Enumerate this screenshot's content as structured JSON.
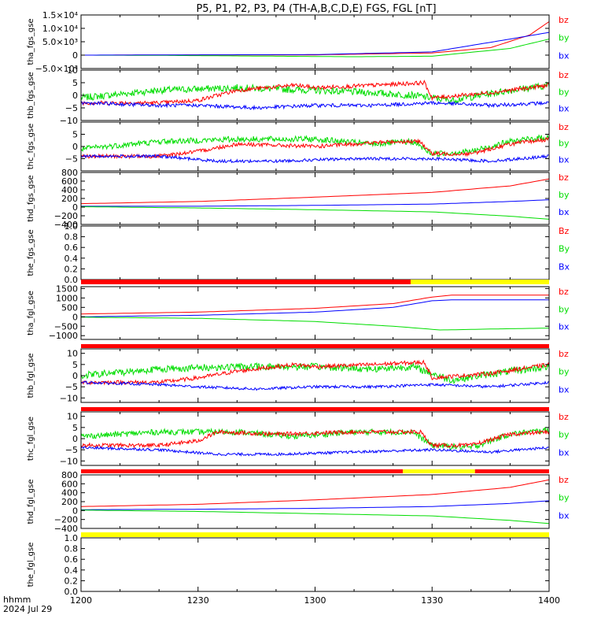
{
  "title": "P5, P1, P2, P3, P4 (TH-A,B,C,D,E) FGS, FGL [nT]",
  "footer": {
    "line1": "hhmm",
    "line2": "2024 Jul 29"
  },
  "colors": {
    "bx": "#0000ff",
    "by": "#00dd00",
    "bz": "#ff0000",
    "bar_red": "#ff0000",
    "bar_yellow": "#ffff00",
    "frame": "#000000",
    "text": "#000000"
  },
  "chart_data": {
    "type": "line",
    "x_ticks": [
      "1200",
      "1230",
      "1300",
      "1330",
      "1400"
    ],
    "x_tick_values": [
      0,
      30,
      60,
      90,
      120
    ],
    "x_unit": "minutes after 12:00",
    "panels": [
      {
        "ylabel": "tha_fgs_gse",
        "ylim": [
          -5000,
          15000
        ],
        "yticks": [
          {
            "v": 15000,
            "label": "1.5×10⁴"
          },
          {
            "v": 10000,
            "label": "1.0×10⁴"
          },
          {
            "v": 5000,
            "label": "5.0×10³"
          },
          {
            "v": 0,
            "label": "0"
          },
          {
            "v": -5000,
            "label": "−5.0×10³"
          }
        ],
        "legend": [
          "bz",
          "by",
          "bx"
        ],
        "series": [
          {
            "name": "bz",
            "kind": "smooth",
            "x": [
              0,
              60,
              90,
              105,
              115,
              120
            ],
            "y": [
              0,
              100,
              800,
              2800,
              7500,
              12500
            ]
          },
          {
            "name": "by",
            "kind": "smooth",
            "x": [
              0,
              20,
              40,
              70,
              90,
              110,
              120
            ],
            "y": [
              0,
              -80,
              -300,
              -600,
              -400,
              2500,
              6000
            ]
          },
          {
            "name": "bx",
            "kind": "smooth",
            "x": [
              0,
              60,
              90,
              110,
              120
            ],
            "y": [
              0,
              200,
              1200,
              6000,
              8500
            ]
          }
        ]
      },
      {
        "ylabel": "thb_fgs_gse",
        "ylim": [
          -10,
          10
        ],
        "yticks": [
          {
            "v": 10,
            "label": "10"
          },
          {
            "v": 5,
            "label": "5"
          },
          {
            "v": 0,
            "label": "0"
          },
          {
            "v": -5,
            "label": "−5"
          },
          {
            "v": -10,
            "label": "−10"
          }
        ],
        "legend": [
          "bz",
          "by",
          "bx"
        ],
        "series": [
          {
            "name": "by",
            "kind": "noisy",
            "noise": 1.4,
            "x": [
              0,
              20,
              40,
              60,
              75,
              85,
              95,
              110,
              120
            ],
            "y": [
              -1,
              2,
              3,
              2,
              1,
              0,
              -2,
              2,
              4
            ]
          },
          {
            "name": "bz",
            "kind": "noisy",
            "noise": 0.8,
            "x": [
              0,
              20,
              30,
              40,
              55,
              60,
              75,
              88,
              90,
              105,
              120
            ],
            "y": [
              -3,
              -3,
              -2,
              2,
              4,
              3,
              4,
              5,
              -1,
              1,
              4
            ]
          },
          {
            "name": "bx",
            "kind": "noisy",
            "noise": 0.7,
            "x": [
              0,
              20,
              30,
              45,
              60,
              75,
              90,
              105,
              120
            ],
            "y": [
              -3,
              -4,
              -4,
              -5,
              -4,
              -4,
              -3,
              -4,
              -3
            ]
          }
        ]
      },
      {
        "ylabel": "thc_fgs_gse",
        "ylim": [
          -10,
          10
        ],
        "yticks": [
          {
            "v": 5,
            "label": "5"
          },
          {
            "v": 0,
            "label": "0"
          },
          {
            "v": -5,
            "label": "−5"
          }
        ],
        "legend": [
          "bz",
          "by",
          "bx"
        ],
        "series": [
          {
            "name": "by",
            "kind": "noisy",
            "noise": 1.2,
            "x": [
              0,
              20,
              40,
              60,
              75,
              85,
              90,
              100,
              110,
              120
            ],
            "y": [
              -1,
              2,
              3,
              3,
              1,
              2,
              -3,
              -2,
              2,
              4
            ]
          },
          {
            "name": "bz",
            "kind": "noisy",
            "noise": 0.8,
            "x": [
              0,
              20,
              30,
              40,
              60,
              80,
              87,
              90,
              100,
              110,
              120
            ],
            "y": [
              -4,
              -4,
              -2,
              1,
              0,
              2,
              2,
              -3,
              -3,
              1,
              3
            ]
          },
          {
            "name": "bx",
            "kind": "noisy",
            "noise": 0.6,
            "x": [
              0,
              20,
              35,
              50,
              70,
              90,
              105,
              120
            ],
            "y": [
              -4,
              -4,
              -6,
              -6,
              -5,
              -5,
              -6,
              -4
            ]
          }
        ]
      },
      {
        "ylabel": "thd_fgs_gse",
        "ylim": [
          -400,
          800
        ],
        "yticks": [
          {
            "v": 800,
            "label": "800"
          },
          {
            "v": 600,
            "label": "600"
          },
          {
            "v": 400,
            "label": "400"
          },
          {
            "v": 200,
            "label": "200"
          },
          {
            "v": 0,
            "label": "0"
          },
          {
            "v": -200,
            "label": "−200"
          },
          {
            "v": -400,
            "label": "−400"
          }
        ],
        "legend": [
          "bz",
          "by",
          "bx"
        ],
        "series": [
          {
            "name": "bz",
            "kind": "smooth",
            "x": [
              0,
              30,
              60,
              90,
              110,
              120
            ],
            "y": [
              80,
              130,
              230,
              340,
              490,
              650
            ]
          },
          {
            "name": "bx",
            "kind": "smooth",
            "x": [
              0,
              30,
              60,
              90,
              110,
              120
            ],
            "y": [
              20,
              20,
              40,
              70,
              130,
              170
            ]
          },
          {
            "name": "by",
            "kind": "smooth",
            "x": [
              0,
              30,
              60,
              90,
              110,
              120
            ],
            "y": [
              10,
              -20,
              -60,
              -110,
              -210,
              -280
            ]
          }
        ]
      },
      {
        "ylabel": "the_fgs_gse",
        "ylim": [
          0,
          1.0
        ],
        "yticks": [
          {
            "v": 1.0,
            "label": "1.0"
          },
          {
            "v": 0.8,
            "label": "0.8"
          },
          {
            "v": 0.6,
            "label": "0.6"
          },
          {
            "v": 0.4,
            "label": "0.4"
          },
          {
            "v": 0.2,
            "label": "0.2"
          },
          {
            "v": 0.0,
            "label": "0.0"
          }
        ],
        "legend": [
          "Bz",
          "By",
          "Bx"
        ],
        "series": []
      },
      {
        "ylabel": "tha_fgl_gse",
        "ylim": [
          -1200,
          1600
        ],
        "yticks": [
          {
            "v": 1500,
            "label": "1500"
          },
          {
            "v": 1000,
            "label": "1000"
          },
          {
            "v": 500,
            "label": "500"
          },
          {
            "v": 0,
            "label": "0"
          },
          {
            "v": -500,
            "label": "−500"
          },
          {
            "v": -1000,
            "label": "−1000"
          }
        ],
        "legend": [
          "bz",
          "by",
          "bx"
        ],
        "series": [
          {
            "name": "bz",
            "kind": "smooth",
            "x": [
              0,
              30,
              60,
              80,
              90,
              95,
              120
            ],
            "y": [
              150,
              250,
              450,
              700,
              1050,
              1150,
              1150
            ]
          },
          {
            "name": "bx",
            "kind": "smooth",
            "x": [
              0,
              30,
              60,
              80,
              90,
              95,
              120
            ],
            "y": [
              0,
              80,
              250,
              500,
              850,
              900,
              900
            ]
          },
          {
            "name": "by",
            "kind": "smooth",
            "x": [
              0,
              30,
              60,
              80,
              92,
              105,
              120
            ],
            "y": [
              -20,
              -80,
              -250,
              -500,
              -700,
              -650,
              -600
            ]
          }
        ]
      },
      {
        "ylabel": "thb_fgl_gse",
        "ylim": [
          -12,
          12
        ],
        "yticks": [
          {
            "v": 10,
            "label": "10"
          },
          {
            "v": 5,
            "label": "5"
          },
          {
            "v": 0,
            "label": "0"
          },
          {
            "v": -5,
            "label": "−5"
          },
          {
            "v": -10,
            "label": "−10"
          }
        ],
        "legend": [
          "bz",
          "by",
          "bx"
        ],
        "series": [
          {
            "name": "by",
            "kind": "noisy",
            "noise": 1.6,
            "x": [
              0,
              20,
              40,
              60,
              75,
              85,
              95,
              110,
              120
            ],
            "y": [
              0,
              3,
              4,
              4,
              3,
              4,
              -2,
              2,
              4
            ]
          },
          {
            "name": "bz",
            "kind": "noisy",
            "noise": 0.9,
            "x": [
              0,
              20,
              30,
              40,
              55,
              60,
              75,
              88,
              90,
              105,
              120
            ],
            "y": [
              -3,
              -3,
              -1,
              2,
              5,
              4,
              5,
              6,
              -1,
              1,
              5
            ]
          },
          {
            "name": "bx",
            "kind": "noisy",
            "noise": 0.6,
            "x": [
              0,
              20,
              30,
              45,
              60,
              75,
              90,
              105,
              120
            ],
            "y": [
              -3,
              -4,
              -5,
              -6,
              -5,
              -5,
              -4,
              -5,
              -3
            ]
          }
        ]
      },
      {
        "ylabel": "thc_fgl_gse",
        "ylim": [
          -12,
          12
        ],
        "yticks": [
          {
            "v": 10,
            "label": "10"
          },
          {
            "v": 5,
            "label": "5"
          },
          {
            "v": 0,
            "label": "0"
          },
          {
            "v": -5,
            "label": "−5"
          },
          {
            "v": -10,
            "label": "−10"
          }
        ],
        "legend": [
          "bz",
          "by",
          "bx"
        ],
        "series": [
          {
            "name": "by",
            "kind": "noisy",
            "noise": 1.3,
            "x": [
              0,
              20,
              40,
              55,
              70,
              85,
              90,
              100,
              110,
              120
            ],
            "y": [
              1,
              3,
              3,
              1,
              3,
              3,
              -3,
              -4,
              2,
              4
            ]
          },
          {
            "name": "bz",
            "kind": "noisy",
            "noise": 0.9,
            "x": [
              0,
              20,
              30,
              35,
              50,
              70,
              87,
              90,
              100,
              110,
              120
            ],
            "y": [
              -3,
              -3,
              -1,
              3,
              2,
              3,
              3,
              -3,
              -3,
              2,
              3
            ]
          },
          {
            "name": "bx",
            "kind": "noisy",
            "noise": 0.6,
            "x": [
              0,
              20,
              35,
              50,
              70,
              90,
              105,
              120
            ],
            "y": [
              -4,
              -5,
              -7,
              -7,
              -6,
              -5,
              -6,
              -4
            ]
          }
        ]
      },
      {
        "ylabel": "thd_fgl_gse",
        "ylim": [
          -400,
          800
        ],
        "yticks": [
          {
            "v": 800,
            "label": "800"
          },
          {
            "v": 600,
            "label": "600"
          },
          {
            "v": 400,
            "label": "400"
          },
          {
            "v": 200,
            "label": "200"
          },
          {
            "v": 0,
            "label": "0"
          },
          {
            "v": -200,
            "label": "−200"
          },
          {
            "v": -400,
            "label": "−400"
          }
        ],
        "legend": [
          "bz",
          "by",
          "bx"
        ],
        "series": [
          {
            "name": "bz",
            "kind": "smooth",
            "x": [
              0,
              30,
              60,
              90,
              110,
              120
            ],
            "y": [
              90,
              140,
              240,
              360,
              520,
              690
            ]
          },
          {
            "name": "bx",
            "kind": "smooth",
            "x": [
              0,
              30,
              60,
              90,
              110,
              120
            ],
            "y": [
              20,
              30,
              50,
              90,
              160,
              220
            ]
          },
          {
            "name": "by",
            "kind": "smooth",
            "x": [
              0,
              30,
              60,
              90,
              110,
              120
            ],
            "y": [
              10,
              -20,
              -70,
              -120,
              -220,
              -290
            ]
          }
        ]
      },
      {
        "ylabel": "the_fgl_gse",
        "ylim": [
          0,
          1.0
        ],
        "yticks": [
          {
            "v": 1.0,
            "label": "1.0"
          },
          {
            "v": 0.8,
            "label": "0.8"
          },
          {
            "v": 0.6,
            "label": "0.6"
          },
          {
            "v": 0.4,
            "label": "0.4"
          },
          {
            "v": 0.2,
            "label": "0.2"
          },
          {
            "v": 0.0,
            "label": "0.0"
          }
        ],
        "legend": [],
        "series": []
      }
    ],
    "mode_bars": [
      {
        "segments": [
          {
            "x0": 0,
            "x1": 84.5,
            "color": "red"
          },
          {
            "x0": 84.5,
            "x1": 120,
            "color": "yellow"
          }
        ]
      },
      {
        "segments": [
          {
            "x0": 0,
            "x1": 120,
            "color": "red"
          }
        ]
      },
      {
        "segments": [
          {
            "x0": 0,
            "x1": 120,
            "color": "red"
          }
        ]
      },
      {
        "segments": [
          {
            "x0": 0,
            "x1": 82.5,
            "color": "red"
          },
          {
            "x0": 82.5,
            "x1": 101,
            "color": "yellow"
          },
          {
            "x0": 101,
            "x1": 120,
            "color": "red"
          }
        ]
      },
      {
        "segments": [
          {
            "x0": 0,
            "x1": 120,
            "color": "yellow"
          }
        ]
      }
    ]
  }
}
